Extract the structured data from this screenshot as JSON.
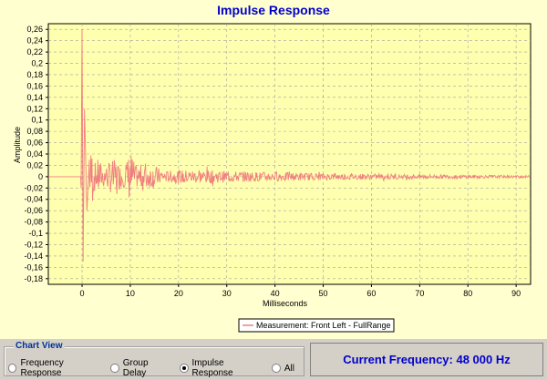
{
  "chart_data": {
    "type": "line",
    "title": "Impulse Response",
    "xlabel": "Milliseconds",
    "ylabel": "Amplitude",
    "xlim": [
      -7,
      93
    ],
    "ylim": [
      -0.19,
      0.27
    ],
    "x_ticks": [
      "0",
      "10",
      "20",
      "30",
      "40",
      "50",
      "60",
      "70",
      "80",
      "90"
    ],
    "y_ticks": [
      "0,26",
      "0,24",
      "0,22",
      "0,2",
      "0,18",
      "0,16",
      "0,14",
      "0,12",
      "0,1",
      "0,08",
      "0,06",
      "0,04",
      "0,02",
      "0",
      "-0,02",
      "-0,04",
      "-0,06",
      "-0,08",
      "-0,1",
      "-0,12",
      "-0,14",
      "-0,16",
      "-0,18"
    ],
    "grid": true,
    "legend_position": "bottom-right",
    "series": [
      {
        "name": "Measurement: Front Left - FullRange",
        "color": "#f08080",
        "x": [
          -7,
          -2,
          -0.5,
          -0.2,
          0,
          0.2,
          0.5,
          1,
          1.5,
          2,
          2.5,
          3,
          3.5,
          4,
          5,
          6,
          7,
          8,
          9,
          10,
          11,
          12,
          13,
          14,
          15,
          17,
          20,
          25,
          30,
          40,
          50,
          60,
          70,
          80,
          93
        ],
        "y": [
          0,
          0,
          0.003,
          -0.02,
          0.26,
          -0.15,
          0.12,
          -0.06,
          0.03,
          0.06,
          -0.03,
          0.02,
          0.04,
          -0.02,
          0.02,
          0.03,
          -0.03,
          0.02,
          -0.02,
          0.05,
          -0.02,
          0.02,
          0.03,
          -0.02,
          0.02,
          0.01,
          -0.012,
          0.012,
          -0.01,
          0.008,
          -0.006,
          0.005,
          -0.004,
          0.003,
          0.002
        ]
      }
    ]
  },
  "bottom": {
    "chart_view_label": "Chart View",
    "options": [
      {
        "label": "Frequency Response",
        "checked": false
      },
      {
        "label": "Group Delay",
        "checked": false
      },
      {
        "label": "Impulse Response",
        "checked": true
      },
      {
        "label": "All",
        "checked": false
      }
    ],
    "current_frequency": "Current Frequency: 48 000 Hz"
  }
}
